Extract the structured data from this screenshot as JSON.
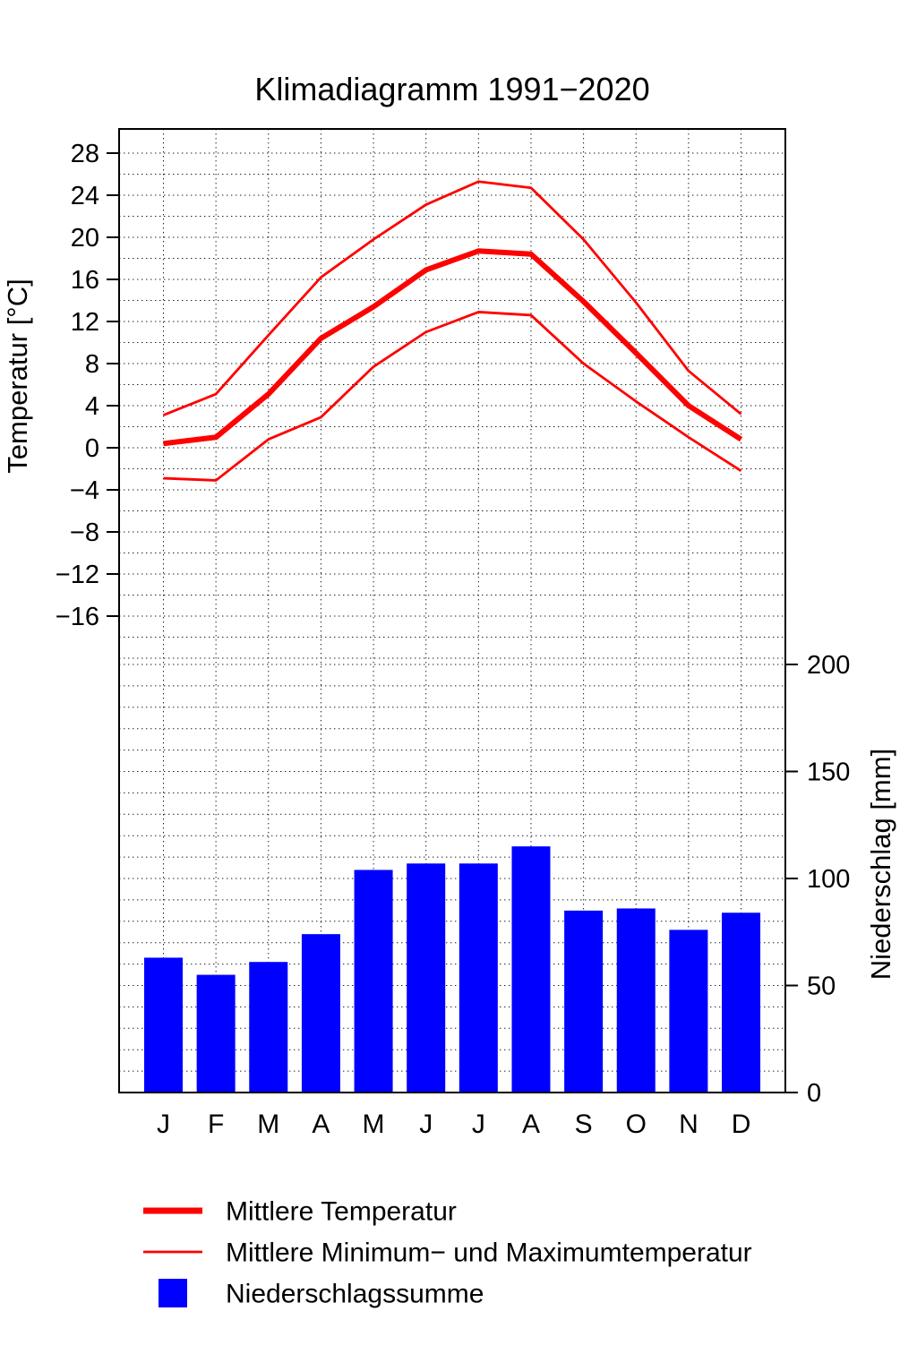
{
  "title": "Klimadiagramm 1991−2020",
  "chart_data": {
    "type": "bar",
    "subtype": "climate-diagram (bars + lines, dual y-axis)",
    "title": "Klimadiagramm 1991−2020",
    "categories": [
      "J",
      "F",
      "M",
      "A",
      "M",
      "J",
      "J",
      "A",
      "S",
      "O",
      "N",
      "D"
    ],
    "temperature_axis": {
      "label": "Temperatur [°C]",
      "unit": "°C",
      "ticks": [
        28,
        24,
        20,
        16,
        12,
        8,
        4,
        0,
        -4,
        -8,
        -12,
        -16
      ],
      "minor_grid_step": 2
    },
    "precipitation_axis": {
      "label": "Niederschlag [mm]",
      "unit": "mm",
      "ticks": [
        200,
        150,
        100,
        50,
        0
      ],
      "minor_grid_step": 10
    },
    "grid": "dotted",
    "series": [
      {
        "name": "Mittlere Temperatur",
        "type": "line",
        "style": "thick",
        "color": "#ff0000",
        "values": [
          0.4,
          1.0,
          5.1,
          10.4,
          13.4,
          16.9,
          18.7,
          18.4,
          13.9,
          9.0,
          4.0,
          0.8
        ]
      },
      {
        "name": "Mittlere Maximumtemperatur",
        "type": "line",
        "style": "thin",
        "color": "#ff0000",
        "values": [
          3.1,
          5.1,
          10.7,
          16.2,
          19.8,
          23.1,
          25.3,
          24.7,
          19.8,
          13.8,
          7.3,
          3.2
        ]
      },
      {
        "name": "Mittlere Minimumtemperatur",
        "type": "line",
        "style": "thin",
        "color": "#ff0000",
        "values": [
          -2.9,
          -3.1,
          0.8,
          2.9,
          7.7,
          11.0,
          12.9,
          12.6,
          8.0,
          4.4,
          1.0,
          -2.2
        ]
      },
      {
        "name": "Niederschlagssumme",
        "type": "bar",
        "color": "#0000ff",
        "values": [
          63,
          55,
          61,
          74,
          104,
          107,
          107,
          115,
          85,
          86,
          76,
          84
        ]
      }
    ],
    "legend": [
      {
        "swatch": "thick-line",
        "color": "#ff0000",
        "label": "Mittlere Temperatur"
      },
      {
        "swatch": "thin-line",
        "color": "#ff0000",
        "label": "Mittlere Minimum− und Maximumtemperatur"
      },
      {
        "swatch": "square",
        "color": "#0000ff",
        "label": "Niederschlagssumme"
      }
    ]
  }
}
